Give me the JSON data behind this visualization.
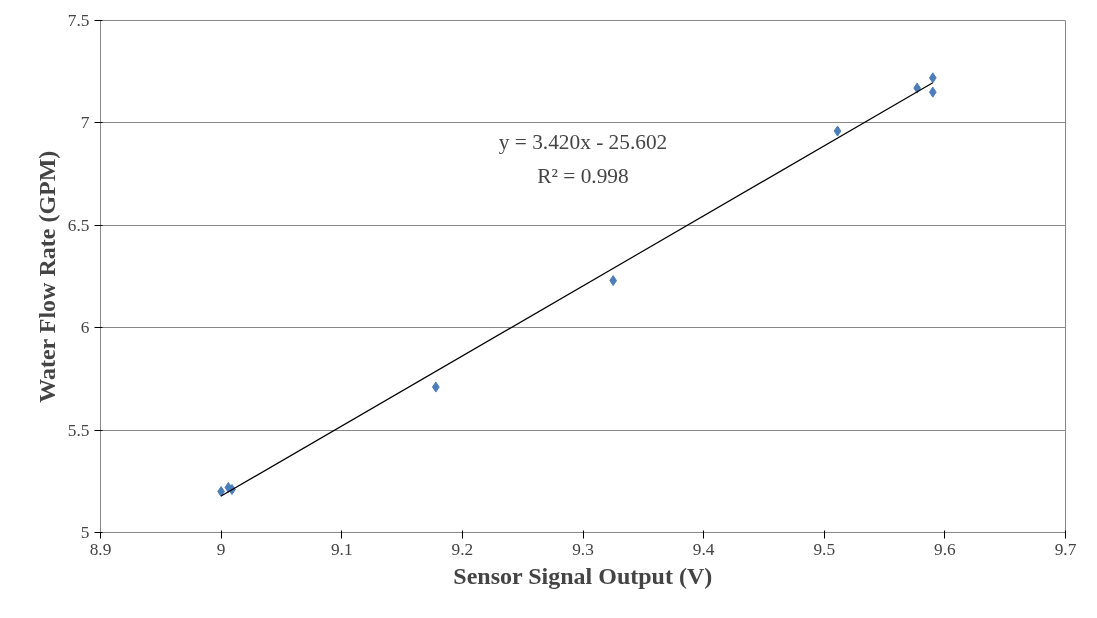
{
  "chart_data": {
    "type": "scatter",
    "xlabel": "Sensor Signal Output (V)",
    "ylabel": "Water Flow Rate (GPM)",
    "xlim": [
      8.9,
      9.7
    ],
    "xticks": [
      8.9,
      9.0,
      9.1,
      9.2,
      9.3,
      9.4,
      9.5,
      9.6,
      9.7
    ],
    "ylim": [
      5,
      7.5
    ],
    "yticks": [
      5,
      5.5,
      6,
      6.5,
      7,
      7.5
    ],
    "grid": "y",
    "marker": "diamond",
    "series": [
      {
        "color": "#4a7ebb",
        "x": [
          9.0,
          9.006,
          9.009,
          9.178,
          9.325,
          9.511,
          9.577,
          9.59,
          9.59
        ],
        "values": [
          5.2,
          5.22,
          5.21,
          5.71,
          6.23,
          6.96,
          7.17,
          7.22,
          7.15
        ]
      },
      {
        "type": "line",
        "marker": "none",
        "color": "#000000",
        "x": [
          9.0,
          9.59
        ],
        "values": [
          5.178,
          7.196
        ]
      }
    ],
    "annotations": [
      "y = 3.420x - 25.602",
      "R² = 0.998"
    ]
  }
}
